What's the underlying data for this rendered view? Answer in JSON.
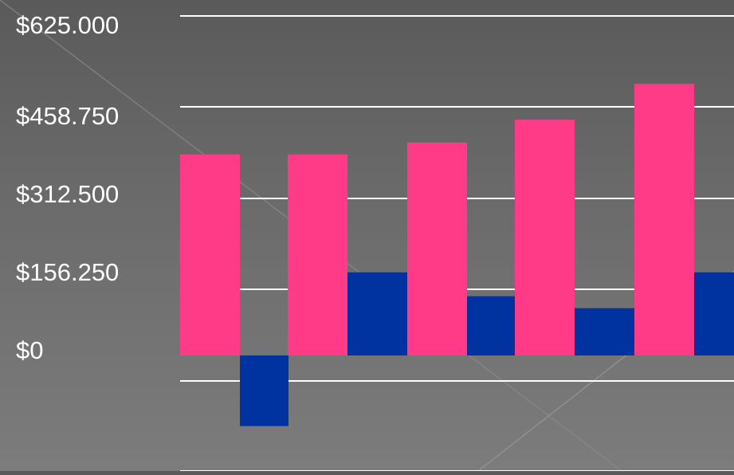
{
  "chart_data": {
    "type": "bar",
    "title": "",
    "xlabel": "",
    "ylabel": "",
    "ylim": [
      -191000,
      625000
    ],
    "y_ticks": [
      0,
      156250,
      312500,
      458750,
      625000
    ],
    "y_tick_labels": [
      "$0",
      "$156.250",
      "$312.500",
      "$458.750",
      "$625.000"
    ],
    "categories": [
      "",
      "",
      "",
      "",
      ""
    ],
    "series": [
      {
        "values": [
          370000,
          370000,
          392000,
          434000,
          500000
        ],
        "color": "#ff3a86"
      },
      {
        "values": [
          -130000,
          153000,
          109000,
          87000,
          153000
        ],
        "color": "#0033a0"
      }
    ],
    "grid": true,
    "legend": "none"
  },
  "colors": {
    "background": "#666666",
    "gridline": "#ffffff",
    "text": "#ffffff"
  }
}
